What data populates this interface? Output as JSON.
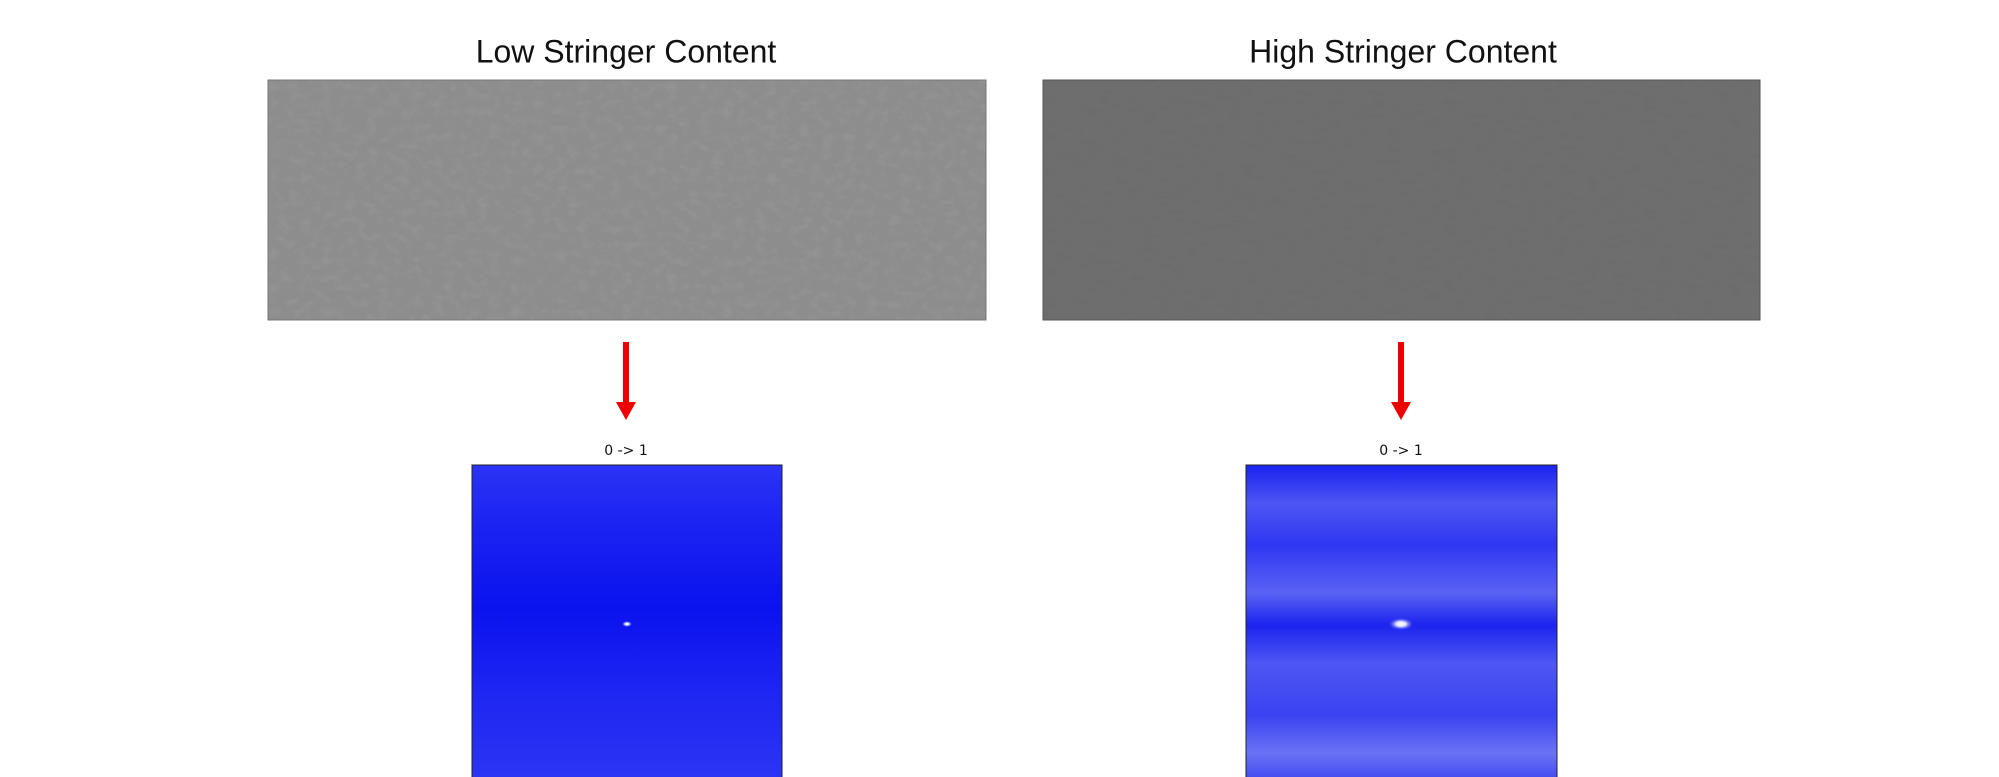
{
  "panels": [
    {
      "title": "Low Stringer Content",
      "caption": "0 -> 1"
    },
    {
      "title": "High Stringer Content",
      "caption": "0 -> 1"
    }
  ]
}
